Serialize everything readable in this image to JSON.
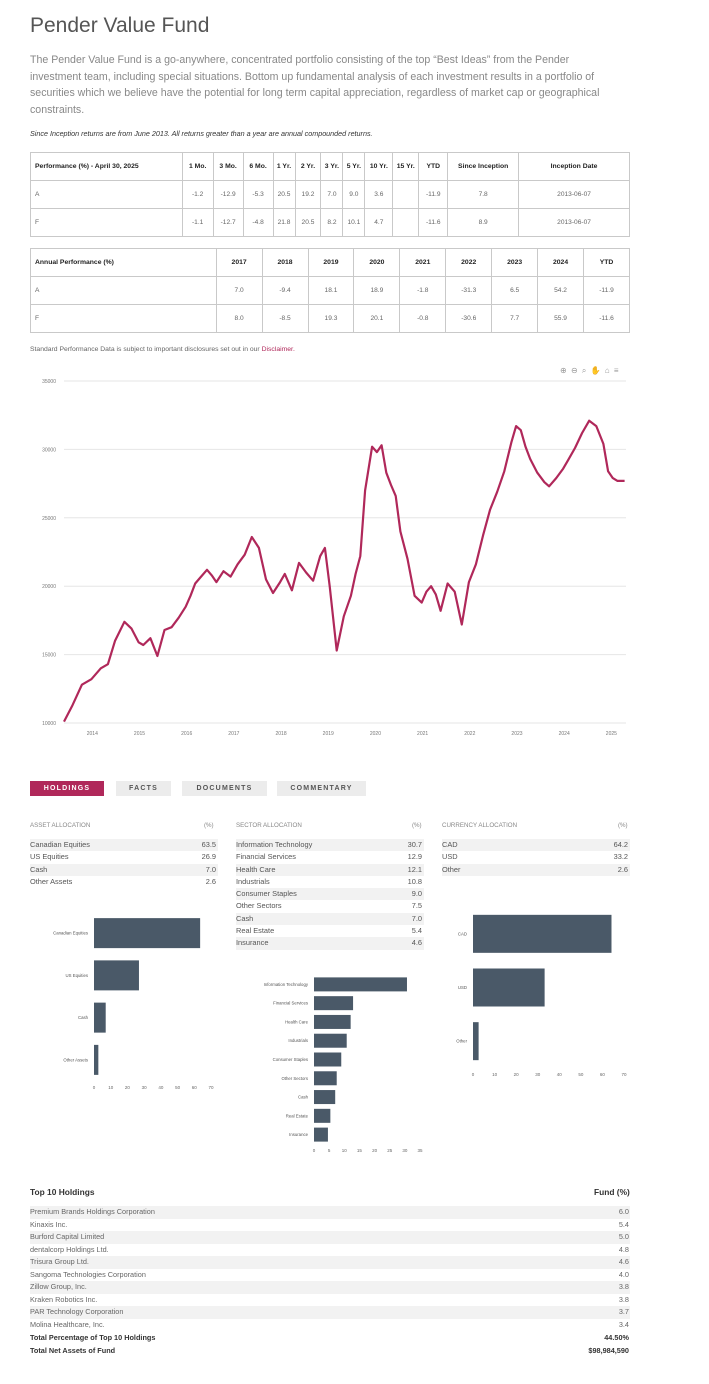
{
  "fund": {
    "title": "Pender Value Fund",
    "description": "The Pender Value Fund is a go-anywhere, concentrated portfolio consisting of the top “Best Ideas” from the Pender investment team, including special situations. Bottom up fundamental analysis of each investment results in a portfolio of securities which we believe have the potential for long term capital appreciation, regardless of market cap or geographical constraints.",
    "note": "Since Inception returns are from June 2013. All returns greater than a year are annual compounded returns."
  },
  "performance": {
    "header": [
      "Performance (%) - April 30, 2025",
      "1 Mo.",
      "3 Mo.",
      "6 Mo.",
      "1 Yr.",
      "2 Yr.",
      "3 Yr.",
      "5 Yr.",
      "10 Yr.",
      "15 Yr.",
      "YTD",
      "Since Inception",
      "Inception Date"
    ],
    "rows": [
      [
        "A",
        "-1.2",
        "-12.9",
        "-5.3",
        "20.5",
        "19.2",
        "7.0",
        "9.0",
        "3.6",
        "",
        "-11.9",
        "7.8",
        "2013-06-07"
      ],
      [
        "F",
        "-1.1",
        "-12.7",
        "-4.8",
        "21.8",
        "20.5",
        "8.2",
        "10.1",
        "4.7",
        "",
        "-11.6",
        "8.9",
        "2013-06-07"
      ]
    ]
  },
  "annual": {
    "header": [
      "Annual Performance (%)",
      "2017",
      "2018",
      "2019",
      "2020",
      "2021",
      "2022",
      "2023",
      "2024",
      "YTD"
    ],
    "rows": [
      [
        "A",
        "7.0",
        "-9.4",
        "18.1",
        "18.9",
        "-1.8",
        "-31.3",
        "6.5",
        "54.2",
        "-11.9"
      ],
      [
        "F",
        "8.0",
        "-8.5",
        "19.3",
        "20.1",
        "-0.8",
        "-30.6",
        "7.7",
        "55.9",
        "-11.6"
      ]
    ]
  },
  "disclaimer": {
    "text": "Standard Performance Data is subject to important disclosures set out in our ",
    "link": "Disclaimer."
  },
  "toolbar": {
    "icons": [
      "zoom-in-icon",
      "zoom-out-icon",
      "magnify-icon",
      "pan-icon",
      "home-icon",
      "menu-icon"
    ],
    "glyphs": "⊕⊖🔍✋⌂≡"
  },
  "chart_data": [
    {
      "type": "line",
      "ylim": [
        10000,
        35000
      ],
      "yticks": [
        "10000",
        "15000",
        "20000",
        "25000",
        "30000",
        "35000"
      ],
      "xticks": [
        "2014",
        "2015",
        "2016",
        "2017",
        "2018",
        "2019",
        "2020",
        "2021",
        "2022",
        "2023",
        "2024",
        "2025"
      ],
      "color": "#b0285a",
      "x": [
        2013.42,
        2013.6,
        2013.8,
        2014.0,
        2014.2,
        2014.35,
        2014.5,
        2014.7,
        2014.85,
        2015.0,
        2015.1,
        2015.25,
        2015.4,
        2015.55,
        2015.7,
        2015.85,
        2016.0,
        2016.1,
        2016.2,
        2016.3,
        2016.45,
        2016.55,
        2016.65,
        2016.8,
        2016.95,
        2017.1,
        2017.25,
        2017.4,
        2017.55,
        2017.7,
        2017.85,
        2018.0,
        2018.1,
        2018.25,
        2018.4,
        2018.55,
        2018.7,
        2018.85,
        2018.95,
        2019.05,
        2019.2,
        2019.35,
        2019.5,
        2019.6,
        2019.7,
        2019.8,
        2019.95,
        2020.05,
        2020.15,
        2020.25,
        2020.35,
        2020.45,
        2020.55,
        2020.7,
        2020.85,
        2021.0,
        2021.1,
        2021.2,
        2021.3,
        2021.4,
        2021.55,
        2021.7,
        2021.85,
        2022.0,
        2022.15,
        2022.3,
        2022.45,
        2022.6,
        2022.75,
        2022.9,
        2023.0,
        2023.1,
        2023.2,
        2023.3,
        2023.45,
        2023.6,
        2023.7,
        2023.85,
        2024.0,
        2024.1,
        2024.25,
        2024.4,
        2024.55,
        2024.7,
        2024.85,
        2024.95,
        2025.05,
        2025.15,
        2025.3
      ],
      "y": [
        10100,
        11300,
        12800,
        13200,
        14000,
        14300,
        16000,
        17400,
        16900,
        15900,
        15700,
        16200,
        14900,
        16800,
        17000,
        17700,
        18500,
        19300,
        20200,
        20600,
        21200,
        20800,
        20300,
        21100,
        20700,
        21600,
        22300,
        23600,
        22800,
        20500,
        19500,
        20300,
        20900,
        19700,
        21700,
        21000,
        20400,
        22200,
        22800,
        20000,
        15300,
        17800,
        19300,
        20900,
        22200,
        27000,
        30200,
        29800,
        30300,
        28300,
        27400,
        26600,
        24000,
        22000,
        19300,
        18800,
        19600,
        20000,
        19400,
        18200,
        20200,
        19600,
        17200,
        20300,
        21600,
        23700,
        25600,
        26900,
        28400,
        30500,
        31700,
        31400,
        30200,
        29300,
        28300,
        27600,
        27300,
        27900,
        28600,
        29200,
        30100,
        31200,
        32100,
        31700,
        30400,
        28400,
        27900,
        27700,
        27700
      ]
    },
    {
      "type": "bar",
      "orientation": "horizontal",
      "categories": [
        "Canadian Equities",
        "US Equities",
        "Cash",
        "Other Assets"
      ],
      "values": [
        63.5,
        26.9,
        7.0,
        2.6
      ],
      "xlim": [
        0,
        70
      ],
      "xticks": [
        "0",
        "10",
        "20",
        "30",
        "40",
        "50",
        "60",
        "70"
      ],
      "color": "#4a5968"
    },
    {
      "type": "bar",
      "orientation": "horizontal",
      "categories": [
        "Information Technology",
        "Financial Services",
        "Health Care",
        "Industrials",
        "Consumer Staples",
        "Other Sectors",
        "Cash",
        "Real Estate",
        "Insurance"
      ],
      "values": [
        30.7,
        12.9,
        12.1,
        10.8,
        9.0,
        7.5,
        7.0,
        5.4,
        4.6
      ],
      "xlim": [
        0,
        35
      ],
      "xticks": [
        "0",
        "5",
        "10",
        "15",
        "20",
        "25",
        "30",
        "35"
      ],
      "color": "#4a5968"
    },
    {
      "type": "bar",
      "orientation": "horizontal",
      "categories": [
        "CAD",
        "USD",
        "Other"
      ],
      "values": [
        64.2,
        33.2,
        2.6
      ],
      "xlim": [
        0,
        70
      ],
      "xticks": [
        "0",
        "10",
        "20",
        "30",
        "40",
        "50",
        "60",
        "70"
      ],
      "color": "#4a5968"
    }
  ],
  "tabs": [
    "HOLDINGS",
    "FACTS",
    "DOCUMENTS",
    "COMMENTARY"
  ],
  "asset": {
    "head": "ASSET ALLOCATION",
    "unit": "(%)",
    "rows": [
      [
        "Canadian Equities",
        "63.5"
      ],
      [
        "US Equities",
        "26.9"
      ],
      [
        "Cash",
        "7.0"
      ],
      [
        "Other Assets",
        "2.6"
      ]
    ]
  },
  "sector": {
    "head": "SECTOR ALLOCATION",
    "unit": "(%)",
    "rows": [
      [
        "Information Technology",
        "30.7"
      ],
      [
        "Financial Services",
        "12.9"
      ],
      [
        "Health Care",
        "12.1"
      ],
      [
        "Industrials",
        "10.8"
      ],
      [
        "Consumer Staples",
        "9.0"
      ],
      [
        "Other Sectors",
        "7.5"
      ],
      [
        "Cash",
        "7.0"
      ],
      [
        "Real Estate",
        "5.4"
      ],
      [
        "Insurance",
        "4.6"
      ]
    ]
  },
  "currency": {
    "head": "CURRENCY ALLOCATION",
    "unit": "(%)",
    "rows": [
      [
        "CAD",
        "64.2"
      ],
      [
        "USD",
        "33.2"
      ],
      [
        "Other",
        "2.6"
      ]
    ]
  },
  "holdings": {
    "title": "Top 10 Holdings",
    "fund_head": "Fund (%)",
    "rows": [
      [
        "Premium Brands Holdings Corporation",
        "6.0"
      ],
      [
        "Kinaxis Inc.",
        "5.4"
      ],
      [
        "Burford Capital Limited",
        "5.0"
      ],
      [
        "dentalcorp Holdings Ltd.",
        "4.8"
      ],
      [
        "Trisura Group Ltd.",
        "4.6"
      ],
      [
        "Sangoma Technologies Corporation",
        "4.0"
      ],
      [
        "Zillow Group, Inc.",
        "3.8"
      ],
      [
        "Kraken Robotics Inc.",
        "3.8"
      ],
      [
        "PAR Technology Corporation",
        "3.7"
      ],
      [
        "Molina Healthcare, Inc.",
        "3.4"
      ]
    ],
    "total_pct_label": "Total Percentage of Top 10 Holdings",
    "total_pct": "44.50%",
    "total_assets_label": "Total Net Assets of Fund",
    "total_assets": "$98,984,590"
  }
}
